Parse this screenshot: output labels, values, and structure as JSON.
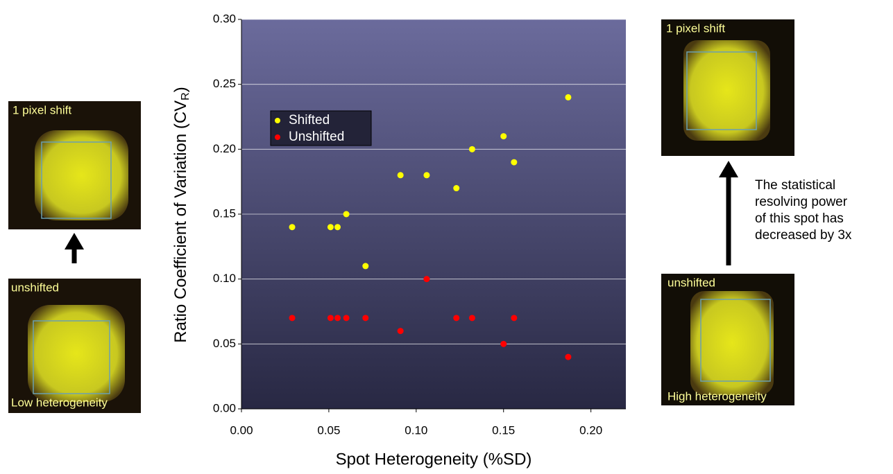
{
  "chart_data": {
    "type": "scatter",
    "x_label": "Spot Heterogeneity (%SD)",
    "y_label": "Ratio Coefficient of Variation (CV",
    "y_label_sub": "R",
    "y_label_end": ")",
    "x": [
      0.029,
      0.051,
      0.055,
      0.06,
      0.071,
      0.091,
      0.106,
      0.123,
      0.132,
      0.15,
      0.156,
      0.187
    ],
    "series": [
      {
        "name": "Shifted",
        "color": "#ffff00",
        "values": [
          0.14,
          0.14,
          0.14,
          0.15,
          0.11,
          0.18,
          0.18,
          0.17,
          0.2,
          0.21,
          0.19,
          0.24
        ]
      },
      {
        "name": "Unshifted",
        "color": "#ff0000",
        "values": [
          0.07,
          0.07,
          0.07,
          0.07,
          0.07,
          0.06,
          0.1,
          0.07,
          0.07,
          0.05,
          0.07,
          0.04
        ]
      }
    ],
    "xlim": [
      0,
      0.22
    ],
    "ylim": [
      0,
      0.3
    ],
    "xticks": [
      {
        "value": 0,
        "label": "0.00"
      },
      {
        "value": 0.05,
        "label": "0.05"
      },
      {
        "value": 0.1,
        "label": "0.10"
      },
      {
        "value": 0.15,
        "label": "0.15"
      },
      {
        "value": 0.2,
        "label": "0.20"
      }
    ],
    "yticks": [
      {
        "value": 0,
        "label": "0.00"
      },
      {
        "value": 0.05,
        "label": "0.05"
      },
      {
        "value": 0.1,
        "label": "0.10"
      },
      {
        "value": 0.15,
        "label": "0.15"
      },
      {
        "value": 0.2,
        "label": "0.20"
      },
      {
        "value": 0.25,
        "label": "0.25"
      },
      {
        "value": 0.3,
        "label": "0.30"
      }
    ],
    "grid": true,
    "legend": "upper left"
  },
  "images": {
    "left_top": "1 pixel shift",
    "left_bottom": "unshifted",
    "left_bottom_caption": "Low heterogeneity",
    "right_top": "1 pixel shift",
    "right_bottom": "unshifted",
    "right_bottom_caption": "High heterogeneity"
  },
  "annotation": [
    "The statistical",
    "resolving power",
    "of this spot has",
    "decreased by 3x"
  ]
}
